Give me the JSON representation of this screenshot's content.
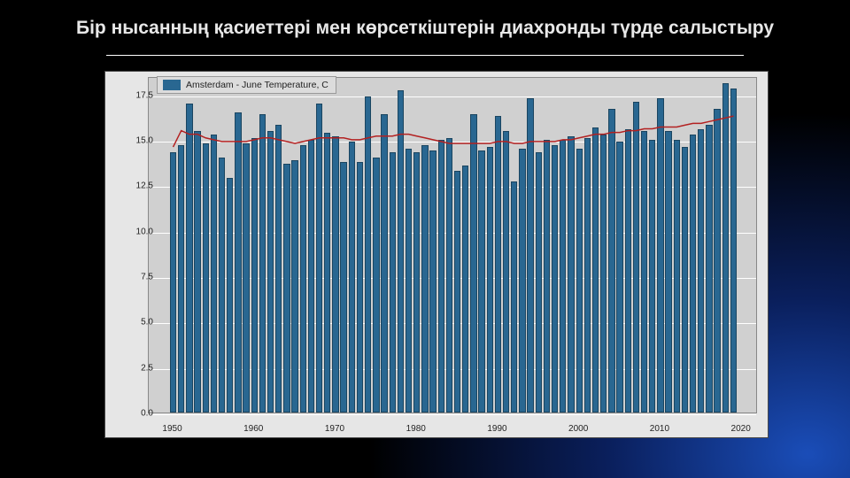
{
  "slide": {
    "title": "Бір нысанның қасиеттері мен көрсеткіштерін диахронды түрде салыстыру"
  },
  "chart": {
    "type": "bar",
    "legend_label": "Amsterdam - June Temperature, C",
    "background_color": "#e6e6e6",
    "plot_bg_color": "#d0d0d0",
    "grid_color": "#ffffff",
    "bar_color": "#296791",
    "bar_border_color": "#1a4560",
    "trend_color": "#b32121",
    "trend_width": 1.5,
    "text_color": "#222222",
    "label_fontsize": 10,
    "legend_fontsize": 10.5,
    "ylim": [
      0.0,
      18.5
    ],
    "yticks": [
      0.0,
      2.5,
      5.0,
      7.5,
      10.0,
      12.5,
      15.0,
      17.5
    ],
    "xlim": [
      1947,
      2022
    ],
    "xticks": [
      1950,
      1960,
      1970,
      1980,
      1990,
      2000,
      2010,
      2020
    ],
    "bar_width_years": 0.8,
    "years": [
      1950,
      1951,
      1952,
      1953,
      1954,
      1955,
      1956,
      1957,
      1958,
      1959,
      1960,
      1961,
      1962,
      1963,
      1964,
      1965,
      1966,
      1967,
      1968,
      1969,
      1970,
      1971,
      1972,
      1973,
      1974,
      1975,
      1976,
      1977,
      1978,
      1979,
      1980,
      1981,
      1982,
      1983,
      1984,
      1985,
      1986,
      1987,
      1988,
      1989,
      1990,
      1991,
      1992,
      1993,
      1994,
      1995,
      1996,
      1997,
      1998,
      1999,
      2000,
      2001,
      2002,
      2003,
      2004,
      2005,
      2006,
      2007,
      2008,
      2009,
      2010,
      2011,
      2012,
      2013,
      2014,
      2015,
      2016,
      2017,
      2018,
      2019
    ],
    "values": [
      14.3,
      14.7,
      17.0,
      15.5,
      14.8,
      15.3,
      14.0,
      12.9,
      16.5,
      14.8,
      15.1,
      16.4,
      15.5,
      15.8,
      13.7,
      13.9,
      14.7,
      15.0,
      17.0,
      15.4,
      15.2,
      13.8,
      14.9,
      13.8,
      17.4,
      14.0,
      16.4,
      14.3,
      17.7,
      14.5,
      14.3,
      14.7,
      14.4,
      15.0,
      15.1,
      13.3,
      13.6,
      16.4,
      14.4,
      14.6,
      16.3,
      15.5,
      12.7,
      14.5,
      17.3,
      14.3,
      15.0,
      14.7,
      15.0,
      15.2,
      14.5,
      15.1,
      15.7,
      15.3,
      16.7,
      14.9,
      15.6,
      17.1,
      15.5,
      15.0,
      17.3,
      15.5,
      15.0,
      14.6,
      15.3,
      15.6,
      15.8,
      16.7,
      18.1,
      17.8
    ],
    "trend": [
      14.7,
      15.6,
      15.4,
      15.4,
      15.2,
      15.1,
      15.0,
      15.0,
      15.0,
      15.0,
      15.1,
      15.2,
      15.2,
      15.1,
      15.0,
      14.9,
      15.0,
      15.1,
      15.2,
      15.2,
      15.2,
      15.2,
      15.1,
      15.1,
      15.2,
      15.3,
      15.3,
      15.3,
      15.4,
      15.4,
      15.3,
      15.2,
      15.1,
      15.0,
      14.9,
      14.9,
      14.9,
      14.9,
      14.9,
      14.9,
      15.0,
      15.0,
      14.9,
      14.9,
      15.0,
      15.0,
      15.0,
      15.0,
      15.1,
      15.1,
      15.2,
      15.3,
      15.4,
      15.4,
      15.5,
      15.5,
      15.6,
      15.6,
      15.7,
      15.7,
      15.8,
      15.8,
      15.8,
      15.9,
      16.0,
      16.0,
      16.1,
      16.2,
      16.3,
      16.4
    ]
  }
}
